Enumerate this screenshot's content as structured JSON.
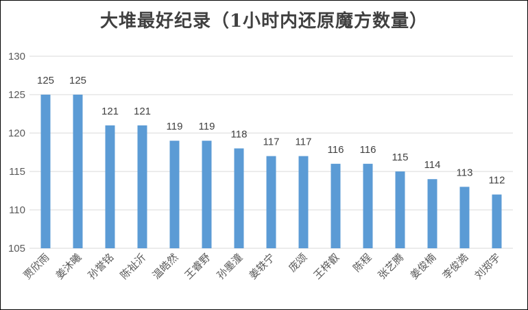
{
  "chart_data": {
    "type": "bar",
    "title": "大堆最好纪录（1小时内还原魔方数量）",
    "xlabel": "",
    "ylabel": "",
    "ylim": [
      105,
      130
    ],
    "yticks": [
      105,
      110,
      115,
      120,
      125,
      130
    ],
    "grid": true,
    "categories": [
      "贾欣雨",
      "姜沐曦",
      "孙誉铭",
      "陈祉沂",
      "温皓然",
      "王睿野",
      "孙墨潼",
      "姜轶宁",
      "庞颂",
      "王梓叡",
      "陈程",
      "张艺腾",
      "姜俊楠",
      "李俊澔",
      "刘郑宇"
    ],
    "values": [
      125,
      125,
      121,
      121,
      119,
      119,
      118,
      117,
      117,
      116,
      116,
      115,
      114,
      113,
      112
    ],
    "bar_color": "#5B9BD5",
    "grid_color": "#D9D9D9"
  }
}
